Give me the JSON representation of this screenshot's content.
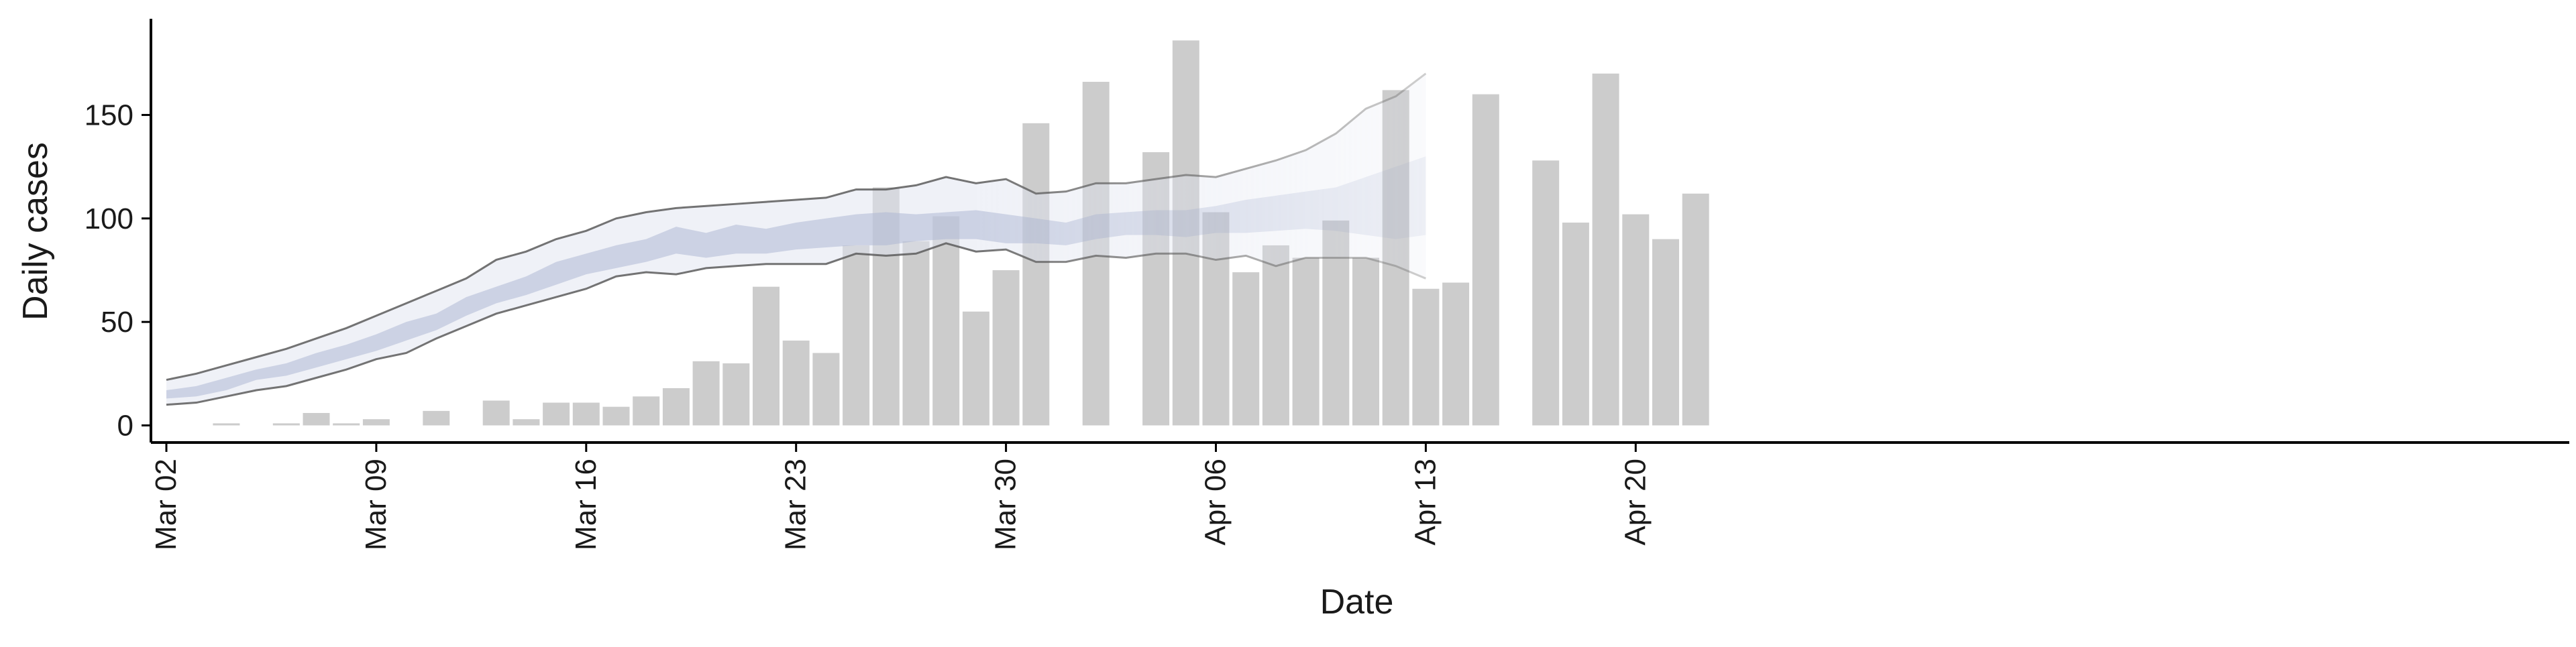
{
  "chart_data": {
    "type": "bar",
    "xlabel": "Date",
    "ylabel": "Daily cases",
    "x_tick_labels": [
      "Mar 02",
      "Mar 09",
      "Mar 16",
      "Mar 23",
      "Mar 30",
      "Apr 06",
      "Apr 13",
      "Apr 20"
    ],
    "x_tick_dates": [
      "2020-03-02",
      "2020-03-09",
      "2020-03-16",
      "2020-03-23",
      "2020-03-30",
      "2020-04-06",
      "2020-04-13",
      "2020-04-20"
    ],
    "y_ticks": [
      0,
      50,
      100,
      150
    ],
    "xlim": [
      "2020-03-02",
      "2020-04-25"
    ],
    "ylim": [
      -8,
      195
    ],
    "grid": false,
    "colors": {
      "bars": "#cccccc",
      "band_outer": "#dfe3ef",
      "band_inner": "#a9b4d1",
      "bound_line": "#5c5c5c",
      "axis": "#000000"
    },
    "daily_cases": {
      "dates": [
        "2020-03-02",
        "2020-03-03",
        "2020-03-04",
        "2020-03-05",
        "2020-03-06",
        "2020-03-07",
        "2020-03-08",
        "2020-03-09",
        "2020-03-10",
        "2020-03-11",
        "2020-03-12",
        "2020-03-13",
        "2020-03-14",
        "2020-03-15",
        "2020-03-16",
        "2020-03-17",
        "2020-03-18",
        "2020-03-19",
        "2020-03-20",
        "2020-03-21",
        "2020-03-22",
        "2020-03-23",
        "2020-03-24",
        "2020-03-25",
        "2020-03-26",
        "2020-03-27",
        "2020-03-28",
        "2020-03-29",
        "2020-03-30",
        "2020-03-31",
        "2020-04-01",
        "2020-04-02",
        "2020-04-03",
        "2020-04-04",
        "2020-04-05",
        "2020-04-06",
        "2020-04-07",
        "2020-04-08",
        "2020-04-09",
        "2020-04-10",
        "2020-04-11",
        "2020-04-12",
        "2020-04-13",
        "2020-04-14",
        "2020-04-15",
        "2020-04-16",
        "2020-04-17",
        "2020-04-18",
        "2020-04-19",
        "2020-04-20",
        "2020-04-21",
        "2020-04-22",
        "2020-04-23"
      ],
      "values": [
        0,
        0,
        1,
        0,
        1,
        6,
        1,
        3,
        0,
        7,
        0,
        12,
        3,
        11,
        11,
        9,
        14,
        18,
        31,
        30,
        67,
        41,
        35,
        87,
        115,
        89,
        101,
        55,
        75,
        146,
        0,
        166,
        0,
        132,
        186,
        103,
        74,
        87,
        81,
        99,
        81,
        162,
        66,
        69,
        160,
        0,
        128,
        98,
        170,
        102,
        90,
        112,
        0
      ]
    },
    "nowcast": {
      "dates": [
        "2020-03-02",
        "2020-03-03",
        "2020-03-04",
        "2020-03-05",
        "2020-03-06",
        "2020-03-07",
        "2020-03-08",
        "2020-03-09",
        "2020-03-10",
        "2020-03-11",
        "2020-03-12",
        "2020-03-13",
        "2020-03-14",
        "2020-03-15",
        "2020-03-16",
        "2020-03-17",
        "2020-03-18",
        "2020-03-19",
        "2020-03-20",
        "2020-03-21",
        "2020-03-22",
        "2020-03-23",
        "2020-03-24",
        "2020-03-25",
        "2020-03-26",
        "2020-03-27",
        "2020-03-28",
        "2020-03-29",
        "2020-03-30",
        "2020-03-31",
        "2020-04-01",
        "2020-04-02",
        "2020-04-03",
        "2020-04-04",
        "2020-04-05",
        "2020-04-06",
        "2020-04-07",
        "2020-04-08",
        "2020-04-09",
        "2020-04-10",
        "2020-04-11",
        "2020-04-12",
        "2020-04-13"
      ],
      "lower_90": [
        10,
        11,
        14,
        17,
        19,
        23,
        27,
        32,
        35,
        42,
        48,
        54,
        58,
        62,
        66,
        72,
        74,
        73,
        76,
        77,
        78,
        78,
        78,
        83,
        82,
        83,
        88,
        84,
        85,
        79,
        79,
        82,
        81,
        83,
        83,
        80,
        82,
        77,
        81,
        81,
        81,
        77,
        71
      ],
      "upper_90": [
        22,
        25,
        29,
        33,
        37,
        42,
        47,
        53,
        59,
        65,
        71,
        80,
        84,
        90,
        94,
        100,
        103,
        105,
        106,
        107,
        108,
        109,
        110,
        114,
        114,
        116,
        120,
        117,
        119,
        112,
        113,
        117,
        117,
        119,
        121,
        120,
        124,
        128,
        133,
        141,
        153,
        159,
        170
      ],
      "lower_50": [
        13,
        14,
        17,
        22,
        24,
        28,
        32,
        36,
        41,
        46,
        53,
        59,
        63,
        68,
        73,
        76,
        79,
        83,
        81,
        83,
        83,
        85,
        86,
        87,
        87,
        89,
        90,
        90,
        88,
        88,
        87,
        90,
        92,
        92,
        91,
        93,
        93,
        94,
        95,
        94,
        92,
        90,
        92
      ],
      "upper_50": [
        17,
        19,
        23,
        27,
        30,
        35,
        39,
        44,
        50,
        54,
        62,
        67,
        72,
        79,
        83,
        87,
        90,
        96,
        93,
        97,
        95,
        98,
        100,
        102,
        103,
        102,
        103,
        104,
        102,
        100,
        98,
        102,
        103,
        104,
        104,
        106,
        109,
        111,
        113,
        115,
        120,
        125,
        130
      ]
    }
  }
}
